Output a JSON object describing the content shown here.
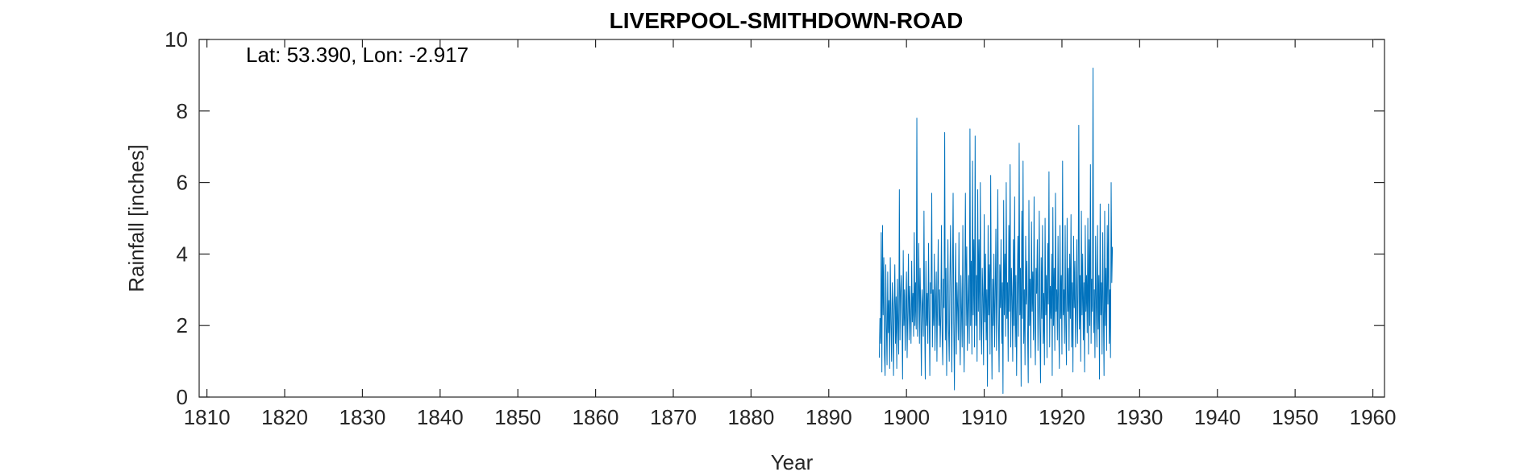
{
  "chart_data": {
    "type": "line",
    "title": "LIVERPOOL-SMITHDOWN-ROAD",
    "annotation": "Lat: 53.390, Lon: -2.917",
    "xlabel": "Year",
    "ylabel": "Rainfall [inches]",
    "xlim": [
      1809,
      1961.5
    ],
    "ylim": [
      0,
      10
    ],
    "xticks": [
      1810,
      1820,
      1830,
      1840,
      1850,
      1860,
      1870,
      1880,
      1890,
      1900,
      1910,
      1920,
      1930,
      1940,
      1950,
      1960
    ],
    "yticks": [
      0,
      2,
      4,
      6,
      8,
      10
    ],
    "grid": false,
    "line_color": "#0072bd",
    "series": [
      {
        "x_start": 1896.5,
        "x_step_months": 1,
        "values": [
          1.1,
          2.2,
          1.5,
          4.6,
          0.7,
          4.8,
          2.3,
          3.9,
          1.2,
          0.6,
          3.7,
          2.0,
          0.9,
          3.5,
          1.8,
          2.7,
          0.8,
          3.9,
          2.1,
          1.0,
          3.2,
          2.6,
          0.6,
          2.4,
          3.7,
          1.5,
          2.8,
          0.8,
          3.3,
          2.0,
          1.2,
          5.8,
          1.6,
          2.9,
          3.4,
          2.3,
          0.5,
          4.1,
          2.0,
          3.0,
          1.3,
          2.6,
          3.5,
          1.1,
          2.4,
          4.0,
          1.6,
          3.1,
          2.2,
          1.5,
          3.8,
          2.1,
          2.9,
          1.7,
          4.6,
          2.0,
          3.2,
          1.9,
          7.8,
          1.7,
          2.8,
          4.3,
          1.5,
          3.6,
          2.4,
          0.6,
          3.0,
          2.6,
          1.7,
          5.2,
          2.2,
          0.5,
          3.8,
          2.0,
          2.9,
          1.5,
          4.3,
          2.4,
          0.6,
          3.2,
          2.9,
          5.7,
          1.4,
          3.0,
          2.0,
          4.0,
          1.3,
          2.6,
          3.5,
          1.0,
          2.8,
          4.4,
          2.0,
          3.0,
          1.4,
          2.3,
          4.8,
          1.8,
          0.9,
          3.3,
          2.5,
          7.4,
          1.6,
          3.6,
          0.6,
          2.6,
          4.4,
          1.9,
          1.0,
          3.2,
          4.8,
          2.6,
          0.7,
          3.3,
          5.7,
          2.1,
          0.2,
          2.9,
          4.3,
          1.2,
          3.2,
          2.5,
          1.6,
          4.6,
          2.1,
          0.9,
          3.4,
          2.4,
          1.4,
          4.8,
          2.2,
          0.7,
          3.0,
          5.7,
          2.0,
          4.2,
          1.3,
          2.6,
          3.4,
          1.5,
          7.5,
          2.0,
          3.8,
          1.2,
          6.6,
          2.3,
          4.4,
          1.4,
          7.3,
          2.0,
          3.4,
          1.0,
          5.8,
          2.4,
          4.4,
          1.6,
          6.0,
          2.2,
          1.2,
          3.6,
          2.8,
          0.9,
          5.1,
          2.1,
          4.0,
          1.6,
          3.0,
          0.3,
          4.8,
          2.3,
          3.7,
          1.2,
          6.2,
          2.5,
          0.5,
          3.3,
          2.0,
          4.0,
          1.4,
          2.8,
          4.7,
          1.3,
          3.3,
          5.8,
          2.1,
          0.7,
          3.7,
          2.5,
          4.4,
          1.5,
          3.2,
          0.1,
          5.5,
          2.3,
          4.0,
          1.7,
          6.0,
          2.2,
          3.2,
          1.0,
          4.8,
          2.4,
          6.5,
          1.4,
          3.6,
          2.8,
          1.0,
          4.4,
          2.0,
          5.6,
          1.4,
          3.4,
          0.6,
          2.8,
          4.5,
          1.7,
          7.1,
          2.3,
          3.6,
          0.3,
          5.2,
          2.2,
          6.6,
          1.5,
          3.0,
          0.9,
          4.5,
          2.6,
          3.8,
          1.8,
          0.4,
          5.5,
          2.0,
          3.3,
          1.1,
          4.9,
          2.4,
          3.5,
          1.6,
          5.6,
          2.1,
          0.9,
          3.6,
          2.9,
          4.4,
          1.3,
          2.6,
          5.2,
          1.9,
          0.4,
          3.9,
          2.2,
          4.8,
          1.5,
          2.9,
          0.9,
          5.0,
          2.3,
          3.4,
          1.1,
          4.3,
          2.6,
          6.3,
          1.4,
          3.1,
          2.2,
          4.0,
          0.6,
          5.3,
          2.0,
          3.6,
          1.3,
          5.7,
          2.4,
          3.0,
          1.6,
          4.5,
          2.1,
          0.8,
          4.8,
          2.2,
          3.4,
          1.2,
          6.6,
          2.3,
          3.0,
          1.5,
          4.8,
          2.0,
          0.9,
          5.0,
          2.4,
          3.6,
          1.3,
          4.0,
          2.2,
          5.1,
          1.4,
          3.2,
          0.7,
          4.5,
          2.5,
          3.8,
          1.4,
          2.7,
          4.4,
          1.5,
          2.9,
          7.6,
          1.9,
          3.4,
          1.0,
          5.2,
          2.3,
          4.0,
          1.6,
          3.2,
          0.7,
          4.8,
          2.4,
          3.4,
          1.8,
          5.0,
          1.2,
          4.4,
          2.0,
          6.5,
          1.5,
          3.3,
          2.4,
          9.2,
          1.8,
          3.0,
          1.1,
          4.5,
          2.6,
          1.4,
          4.8,
          1.9,
          3.4,
          0.5,
          5.4,
          2.3,
          3.2,
          1.2,
          4.6,
          2.4,
          0.6,
          5.2,
          2.0,
          3.6,
          1.3,
          4.8,
          2.6,
          5.4,
          1.5,
          3.0,
          1.1,
          6.0,
          3.2,
          4.2
        ]
      }
    ]
  }
}
